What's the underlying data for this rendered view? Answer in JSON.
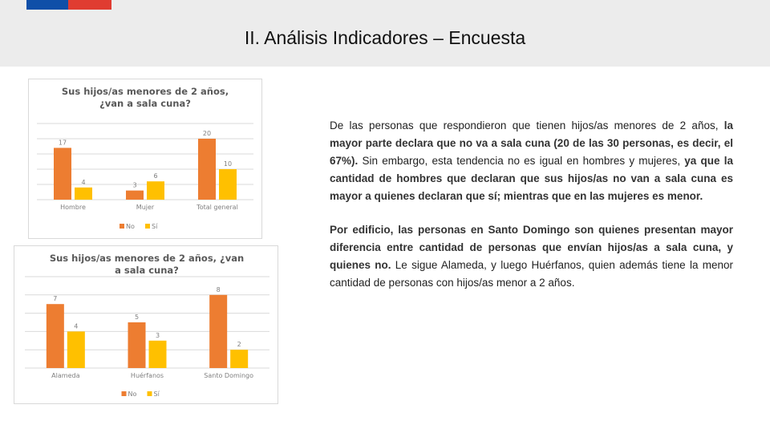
{
  "header": {
    "title": "II. Análisis Indicadores – Encuesta"
  },
  "chart_data": [
    {
      "type": "bar",
      "title": "Sus hijos/as menores de 2 años, ¿van a sala cuna?",
      "categories": [
        "Hombre",
        "Mujer",
        "Total general"
      ],
      "series": [
        {
          "name": "No",
          "color": "#ed7d31",
          "values": [
            17,
            3,
            20
          ]
        },
        {
          "name": "Sí",
          "color": "#ffc000",
          "values": [
            4,
            6,
            10
          ]
        }
      ],
      "ylim": [
        0,
        25
      ],
      "yticks": [
        0,
        5,
        10,
        15,
        20,
        25
      ],
      "grid": true,
      "legend": "bottom"
    },
    {
      "type": "bar",
      "title": "Sus hijos/as menores de 2 años, ¿van a sala cuna?",
      "categories": [
        "Alameda",
        "Huérfanos",
        "Santo Domingo"
      ],
      "series": [
        {
          "name": "No",
          "color": "#ed7d31",
          "values": [
            7,
            5,
            8
          ]
        },
        {
          "name": "Sí",
          "color": "#ffc000",
          "values": [
            4,
            3,
            2
          ]
        }
      ],
      "ylim": [
        0,
        10
      ],
      "yticks": [
        0,
        2,
        4,
        6,
        8,
        10
      ],
      "grid": true,
      "legend": "bottom"
    }
  ],
  "paragraphs": [
    [
      {
        "text": "De las personas que respondieron que tienen hijos/as menores de 2 años, ",
        "bold": false
      },
      {
        "text": "la mayor parte declara que no va a sala cuna (20 de las 30 personas, es decir, el 67%).",
        "bold": true
      },
      {
        "text": " Sin embargo, esta tendencia no es igual en hombres y mujeres, ",
        "bold": false
      },
      {
        "text": "ya que la cantidad de hombres que declaran que sus hijos/as no van a sala cuna es mayor a quienes declaran que sí; mientras que en las mujeres es menor.",
        "bold": true
      }
    ],
    [
      {
        "text": "Por edificio, las personas en Santo Domingo son quienes presentan mayor diferencia entre cantidad de personas que envían hijos/as a sala cuna, y quienes no.",
        "bold": true
      },
      {
        "text": " Le sigue Alameda, y luego Huérfanos, quien además tiene la menor cantidad de personas con hijos/as menor a 2 años.",
        "bold": false
      }
    ]
  ]
}
